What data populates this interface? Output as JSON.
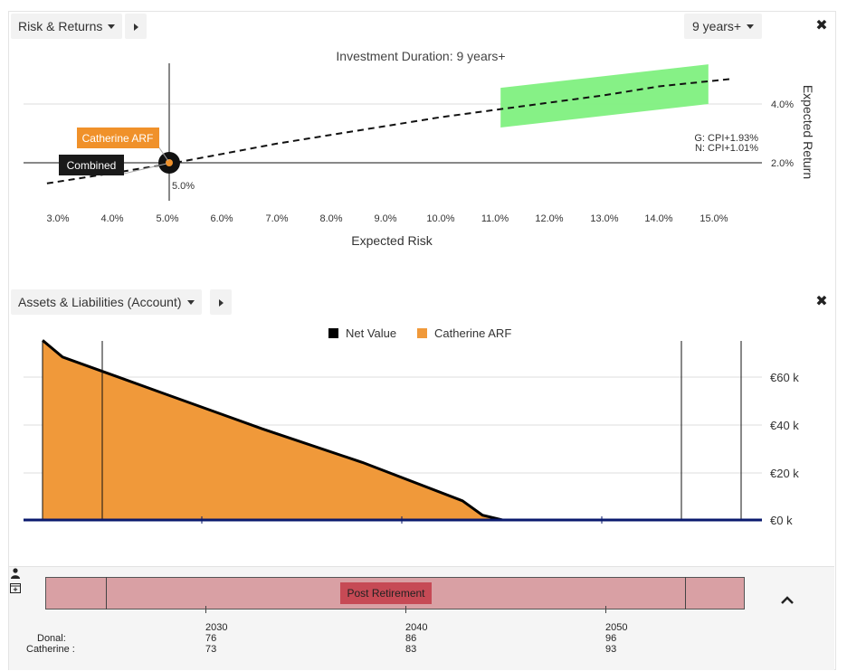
{
  "risk_panel": {
    "dropdown_label": "Risk & Returns",
    "duration_dropdown": "9 years+",
    "close_symbol": "✖",
    "chart_title": "Investment Duration: 9 years+",
    "x_label": "Expected Risk",
    "y_label": "Expected Return",
    "x_ticks": [
      "3.0%",
      "4.0%",
      "5.0%",
      "6.0%",
      "7.0%",
      "8.0%",
      "9.0%",
      "10.0%",
      "11.0%",
      "12.0%",
      "13.0%",
      "14.0%",
      "15.0%"
    ],
    "y_ticks": [
      "4.0%",
      "2.0%"
    ],
    "marker_label": "5.0%",
    "annotation_g": "G: CPI+1.93%",
    "annotation_n": "N: CPI+1.01%",
    "callout_catherine": "Catherine ARF",
    "callout_combined": "Combined",
    "colors": {
      "band": "#80f080",
      "catherine": "#f0912a",
      "combined": "#1a1a1a"
    }
  },
  "assets_panel": {
    "dropdown_label": "Assets & Liabilities (Account)",
    "close_symbol": "✖",
    "legend": [
      {
        "label": "Net Value",
        "color": "#000000"
      },
      {
        "label": "Catherine ARF",
        "color": "#f0993a"
      }
    ],
    "y_ticks": [
      "€60 k",
      "€40 k",
      "€20 k",
      "€0 k"
    ],
    "colors": {
      "area": "#f0993a",
      "baseline": "#0a1a6e"
    }
  },
  "timeline": {
    "phase_label": "Post Retirement",
    "icons": [
      "person-icon",
      "calendar-icon"
    ],
    "years": [
      "2030",
      "2040",
      "2050"
    ],
    "people": [
      {
        "name": "Donal:",
        "ages": [
          "76",
          "86",
          "96"
        ]
      },
      {
        "name": "Catherine :",
        "ages": [
          "73",
          "83",
          "93"
        ]
      }
    ],
    "collapse_icon": "chevron-up-icon",
    "colors": {
      "bar": "#d9a0a4",
      "phase": "#c64a55"
    }
  },
  "chart_data": [
    {
      "type": "line",
      "title": "Investment Duration: 9 years+",
      "xlabel": "Expected Risk",
      "ylabel": "Expected Return",
      "xlim": [
        2.8,
        15.8
      ],
      "ylim": [
        0.7,
        5.7
      ],
      "series": [
        {
          "x": [
            2.8,
            4.0,
            5.0,
            6.0,
            7.0,
            8.0,
            9.0,
            10.0,
            11.0,
            12.0,
            13.0,
            14.0,
            15.3
          ],
          "y": [
            1.3,
            1.65,
            1.95,
            2.3,
            2.65,
            2.95,
            3.25,
            3.55,
            3.8,
            4.05,
            4.3,
            4.6,
            4.85
          ]
        }
      ],
      "points": [
        {
          "name": "Catherine ARF",
          "x": 5.0,
          "y": 2.0
        },
        {
          "name": "Combined",
          "x": 5.0,
          "y": 2.0
        }
      ],
      "band": {
        "x": [
          11.1,
          14.9
        ],
        "y_low": [
          3.2,
          4.0
        ],
        "y_high": [
          4.55,
          5.35
        ]
      },
      "reference_lines": {
        "x": 5.0,
        "y": 2.0
      }
    },
    {
      "type": "area",
      "x": [
        2024,
        2025,
        2030,
        2035,
        2040,
        2045,
        2046,
        2047,
        2050,
        2055,
        2057
      ],
      "series": [
        {
          "name": "Catherine ARF",
          "values": [
            75,
            68,
            53,
            38,
            24,
            8,
            2,
            0,
            0,
            0,
            0
          ]
        },
        {
          "name": "Net Value",
          "values": [
            75,
            68,
            53,
            38,
            24,
            8,
            2,
            0,
            0,
            0,
            0
          ]
        }
      ],
      "ylim": [
        0,
        75
      ],
      "markers_x": [
        2025,
        2054,
        2057
      ]
    }
  ]
}
